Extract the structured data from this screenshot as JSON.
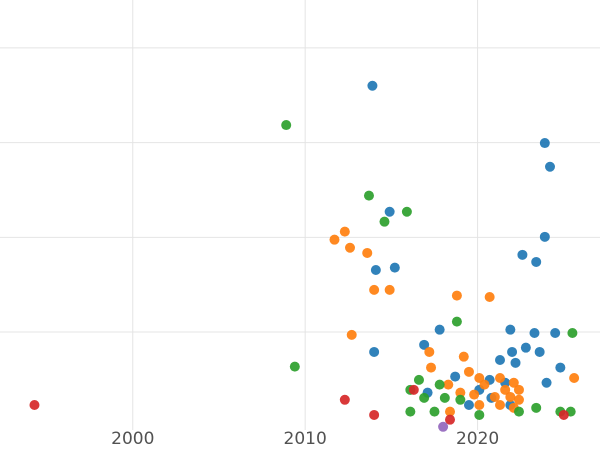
{
  "figure": {
    "background_color": "#ffffff",
    "gridline_color": "#e4e4e4",
    "tick_label_color": "#525252",
    "tick_font_size": 17
  },
  "chart_data": {
    "type": "scatter",
    "title": "",
    "xlabel": "",
    "ylabel": "",
    "grid": true,
    "legend": "none",
    "x_tick_labels": [
      "2000",
      "2010",
      "2020"
    ],
    "x_tick_values": [
      2000,
      2010,
      2020
    ],
    "y_tick_labels": [],
    "y_gridline_values": [
      20,
      40,
      60,
      80
    ],
    "x_range": [
      1992.3,
      2027.1
    ],
    "y_range": [
      -4.9,
      90.1
    ],
    "series": [
      {
        "name": "blue",
        "color": "#1f77b4",
        "points": [
          [
            2013.9,
            72.0
          ],
          [
            2023.9,
            59.9
          ],
          [
            2024.2,
            54.9
          ],
          [
            2014.9,
            45.4
          ],
          [
            2023.9,
            40.1
          ],
          [
            2014.1,
            33.1
          ],
          [
            2015.2,
            33.6
          ],
          [
            2022.6,
            36.3
          ],
          [
            2023.4,
            34.8
          ],
          [
            2017.8,
            20.5
          ],
          [
            2021.9,
            20.5
          ],
          [
            2023.3,
            19.8
          ],
          [
            2024.5,
            19.8
          ],
          [
            2014.0,
            15.8
          ],
          [
            2016.9,
            17.3
          ],
          [
            2022.0,
            15.8
          ],
          [
            2022.8,
            16.7
          ],
          [
            2023.6,
            15.8
          ],
          [
            2021.3,
            14.1
          ],
          [
            2022.2,
            13.5
          ],
          [
            2024.8,
            12.5
          ],
          [
            2018.7,
            10.6
          ],
          [
            2020.7,
            9.9
          ],
          [
            2021.6,
            9.3
          ],
          [
            2024.0,
            9.3
          ],
          [
            2020.1,
            7.8
          ],
          [
            2017.1,
            7.2
          ],
          [
            2020.8,
            6.1
          ],
          [
            2019.5,
            4.6
          ],
          [
            2021.9,
            4.6
          ]
        ]
      },
      {
        "name": "orange",
        "color": "#ff7f0e",
        "points": [
          [
            2011.7,
            39.5
          ],
          [
            2012.3,
            41.2
          ],
          [
            2012.6,
            37.8
          ],
          [
            2013.6,
            36.7
          ],
          [
            2014.0,
            28.9
          ],
          [
            2014.9,
            28.9
          ],
          [
            2018.8,
            27.7
          ],
          [
            2020.7,
            27.4
          ],
          [
            2012.7,
            19.4
          ],
          [
            2017.2,
            15.8
          ],
          [
            2019.2,
            14.8
          ],
          [
            2017.3,
            12.5
          ],
          [
            2019.5,
            11.6
          ],
          [
            2020.1,
            10.3
          ],
          [
            2021.3,
            10.3
          ],
          [
            2018.3,
            8.9
          ],
          [
            2020.4,
            8.9
          ],
          [
            2022.1,
            9.3
          ],
          [
            2021.6,
            7.8
          ],
          [
            2022.4,
            7.8
          ],
          [
            2019.0,
            7.2
          ],
          [
            2019.8,
            6.8
          ],
          [
            2021.0,
            6.3
          ],
          [
            2021.9,
            6.3
          ],
          [
            2022.4,
            5.7
          ],
          [
            2020.1,
            4.6
          ],
          [
            2021.3,
            4.6
          ],
          [
            2022.1,
            4.0
          ],
          [
            2018.4,
            3.2
          ],
          [
            2025.6,
            10.3
          ]
        ]
      },
      {
        "name": "green",
        "color": "#2ca02c",
        "points": [
          [
            2008.9,
            63.7
          ],
          [
            2013.7,
            48.8
          ],
          [
            2015.9,
            45.4
          ],
          [
            2014.6,
            43.3
          ],
          [
            2018.8,
            22.2
          ],
          [
            2025.5,
            19.8
          ],
          [
            2009.4,
            12.7
          ],
          [
            2016.6,
            9.9
          ],
          [
            2017.8,
            8.9
          ],
          [
            2016.1,
            7.8
          ],
          [
            2016.9,
            6.1
          ],
          [
            2018.1,
            6.1
          ],
          [
            2019.0,
            5.7
          ],
          [
            2016.1,
            3.2
          ],
          [
            2017.5,
            3.2
          ],
          [
            2022.4,
            3.2
          ],
          [
            2023.4,
            4.0
          ],
          [
            2024.8,
            3.2
          ],
          [
            2025.4,
            3.2
          ],
          [
            2020.1,
            2.5
          ]
        ]
      },
      {
        "name": "red",
        "color": "#d62728",
        "points": [
          [
            1994.3,
            4.6
          ],
          [
            2012.3,
            5.7
          ],
          [
            2014.0,
            2.5
          ],
          [
            2016.3,
            7.8
          ],
          [
            2018.4,
            1.5
          ],
          [
            2025.0,
            2.5
          ]
        ]
      },
      {
        "name": "purple",
        "color": "#9467bd",
        "points": [
          [
            2018.0,
            0.0
          ]
        ]
      }
    ]
  }
}
